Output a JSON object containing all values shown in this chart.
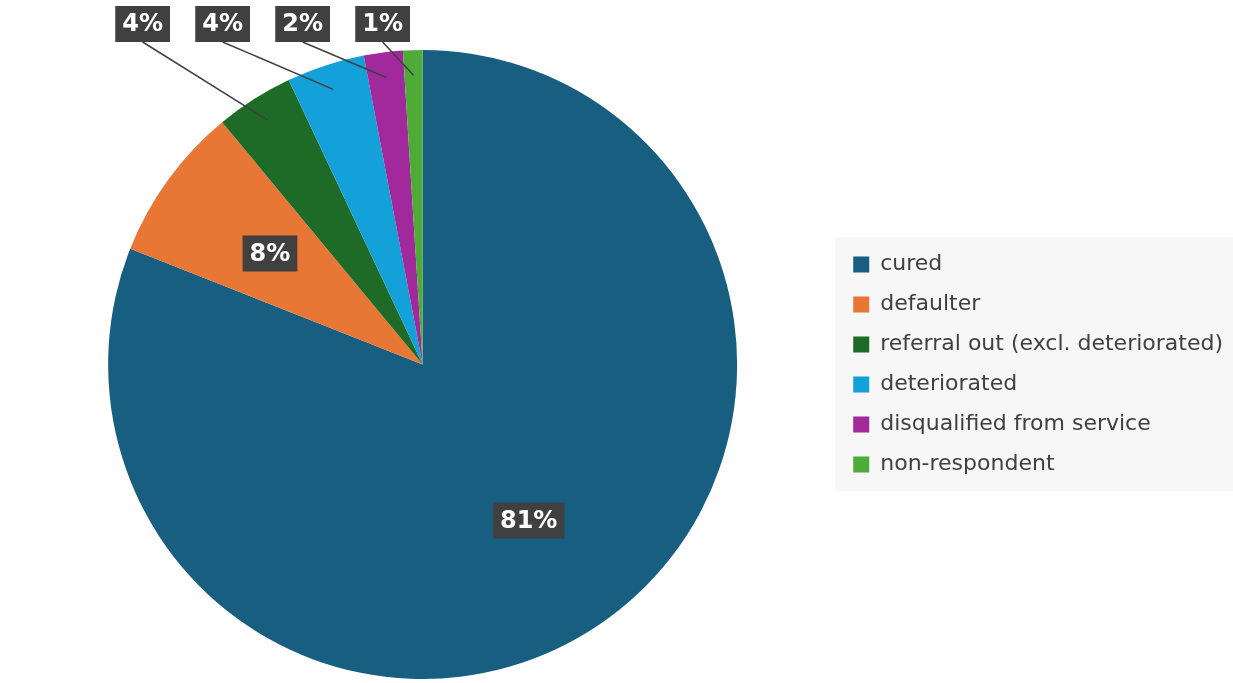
{
  "chart_data": {
    "type": "pie",
    "categories": [
      "cured",
      "defaulter",
      "referral out (excl. deteriorated)",
      "deteriorated",
      "disqualified from service",
      "non-respondent"
    ],
    "values": [
      81,
      8,
      4,
      4,
      2,
      1
    ],
    "colors": [
      "#175e80",
      "#e87634",
      "#1d6b26",
      "#14a0d8",
      "#a1299b",
      "#4eab37"
    ],
    "value_labels": [
      "81%",
      "8%",
      "4%",
      "4%",
      "2%",
      "1%"
    ],
    "legend": "right"
  }
}
